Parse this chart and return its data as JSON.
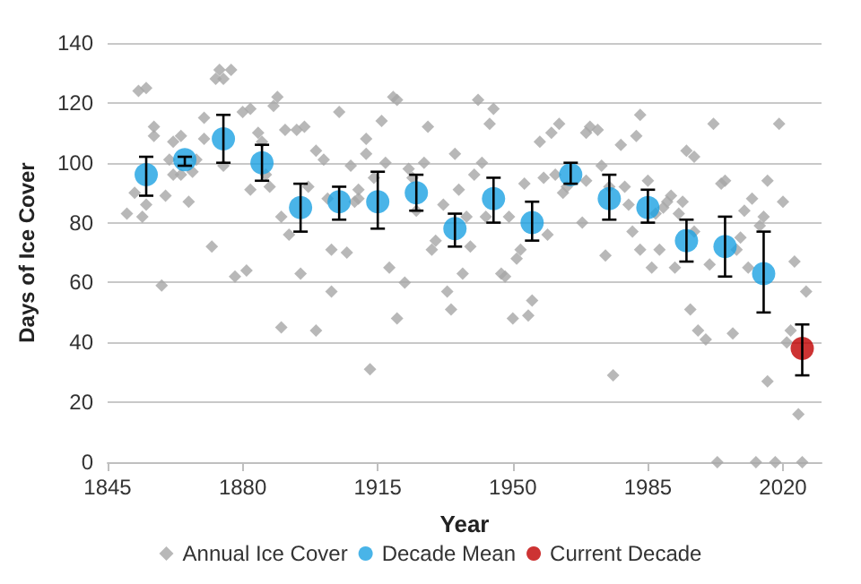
{
  "chart_data": {
    "type": "scatter",
    "xlabel": "Year",
    "ylabel": "Days of Ice Cover",
    "xlim": [
      1845,
      2030
    ],
    "xticks": [
      1845,
      1880,
      1915,
      1950,
      1985,
      2020
    ],
    "ylim": [
      0,
      140
    ],
    "yticks": [
      0,
      20,
      40,
      60,
      80,
      100,
      120,
      140
    ],
    "grid": "y",
    "legend": "bottom",
    "series": [
      {
        "name": "Annual Ice Cover",
        "color": "#a6a6a6",
        "marker": "diamond",
        "x": [
          1852,
          1850,
          1854,
          1855,
          1853,
          1855,
          1857,
          1857,
          1859,
          1860,
          1861,
          1862,
          1862,
          1864,
          1864,
          1866,
          1867,
          1868,
          1870,
          1870,
          1872,
          1873,
          1874,
          1875,
          1877,
          1875,
          1878,
          1881,
          1880,
          1882,
          1884,
          1885,
          1882,
          1887,
          1886,
          1888,
          1889,
          1890,
          1891,
          1894,
          1896,
          1892,
          1895,
          1890,
          1899,
          1899,
          1901,
          1897,
          1902,
          1903,
          1903,
          1905,
          1907,
          1908,
          1909,
          1910,
          1910,
          1912,
          1912,
          1914,
          1916,
          1917,
          1918,
          1919,
          1920,
          1920,
          1913,
          1922,
          1923,
          1924,
          1925,
          1927,
          1928,
          1929,
          1930,
          1932,
          1933,
          1934,
          1935,
          1936,
          1937,
          1938,
          1939,
          1940,
          1941,
          1942,
          1943,
          1944,
          1945,
          1947,
          1948,
          1949,
          1950,
          1951,
          1952,
          1953,
          1954,
          1955,
          1957,
          1958,
          1959,
          1960,
          1961,
          1962,
          1963,
          1964,
          1968,
          1969,
          1969,
          1970,
          1972,
          1973,
          1974,
          1975,
          1976,
          1978,
          1979,
          1980,
          1981,
          1982,
          1983,
          1983,
          1985,
          1986,
          1987,
          1988,
          1989,
          1990,
          1991,
          1992,
          1993,
          1994,
          1995,
          1996,
          1997,
          1997,
          1998,
          2000,
          2001,
          2002,
          2003,
          2004,
          2005,
          2007,
          2008,
          2009,
          2010,
          2011,
          2012,
          2013,
          2014,
          2015,
          2016,
          2016,
          2018,
          2019,
          2020,
          2021,
          2022,
          2023,
          2024,
          2025,
          2026
        ],
        "values": [
          90,
          83,
          82,
          86,
          124,
          125,
          112,
          109,
          59,
          89,
          101,
          96,
          107,
          96,
          109,
          87,
          97,
          101,
          115,
          108,
          72,
          128,
          131,
          128,
          131,
          99,
          62,
          64,
          117,
          118,
          110,
          107,
          91,
          92,
          96,
          119,
          122,
          82,
          111,
          111,
          112,
          76,
          63,
          45,
          44,
          104,
          101,
          92,
          88,
          71,
          57,
          117,
          70,
          99,
          87,
          91,
          88,
          108,
          103,
          95,
          114,
          100,
          65,
          122,
          121,
          48,
          31,
          60,
          98,
          95,
          84,
          100,
          112,
          71,
          74,
          86,
          57,
          51,
          103,
          91,
          63,
          82,
          72,
          96,
          121,
          100,
          82,
          113,
          118,
          63,
          62,
          82,
          48,
          68,
          71,
          93,
          49,
          54,
          107,
          95,
          76,
          110,
          96,
          113,
          90,
          92,
          80,
          94,
          110,
          112,
          111,
          99,
          69,
          92,
          29,
          106,
          92,
          86,
          77,
          109,
          116,
          71,
          94,
          65,
          83,
          71,
          85,
          87,
          89,
          65,
          83,
          87,
          104,
          51,
          102,
          77,
          44,
          41,
          66,
          113,
          0,
          93,
          94,
          43,
          71,
          75,
          84,
          65,
          88,
          0,
          79,
          82,
          94,
          27,
          0,
          113,
          87,
          40,
          44,
          67,
          16,
          0,
          57
        ]
      },
      {
        "name": "Decade Mean",
        "color": "#1ba1e2",
        "marker": "circle",
        "x": [
          1855,
          1865,
          1875,
          1885,
          1895,
          1905,
          1915,
          1925,
          1935,
          1945,
          1955,
          1965,
          1975,
          1985,
          1995,
          2005,
          2015
        ],
        "values": [
          96,
          101,
          108,
          100,
          85,
          87,
          87,
          90,
          78,
          88,
          80,
          96,
          88,
          85,
          74,
          72,
          63
        ],
        "errors": [
          [
            89,
            102
          ],
          [
            99,
            102
          ],
          [
            100,
            116
          ],
          [
            94,
            106
          ],
          [
            77,
            93
          ],
          [
            81,
            92
          ],
          [
            78,
            97
          ],
          [
            84,
            96
          ],
          [
            72,
            83
          ],
          [
            80,
            95
          ],
          [
            74,
            87
          ],
          [
            93,
            100
          ],
          [
            81,
            96
          ],
          [
            80,
            91
          ],
          [
            67,
            81
          ],
          [
            62,
            82
          ],
          [
            50,
            77
          ]
        ]
      },
      {
        "name": "Current Decade",
        "color": "#c00000",
        "marker": "circle",
        "x": [
          2025
        ],
        "values": [
          38
        ],
        "errors": [
          [
            29,
            46
          ]
        ]
      }
    ]
  }
}
